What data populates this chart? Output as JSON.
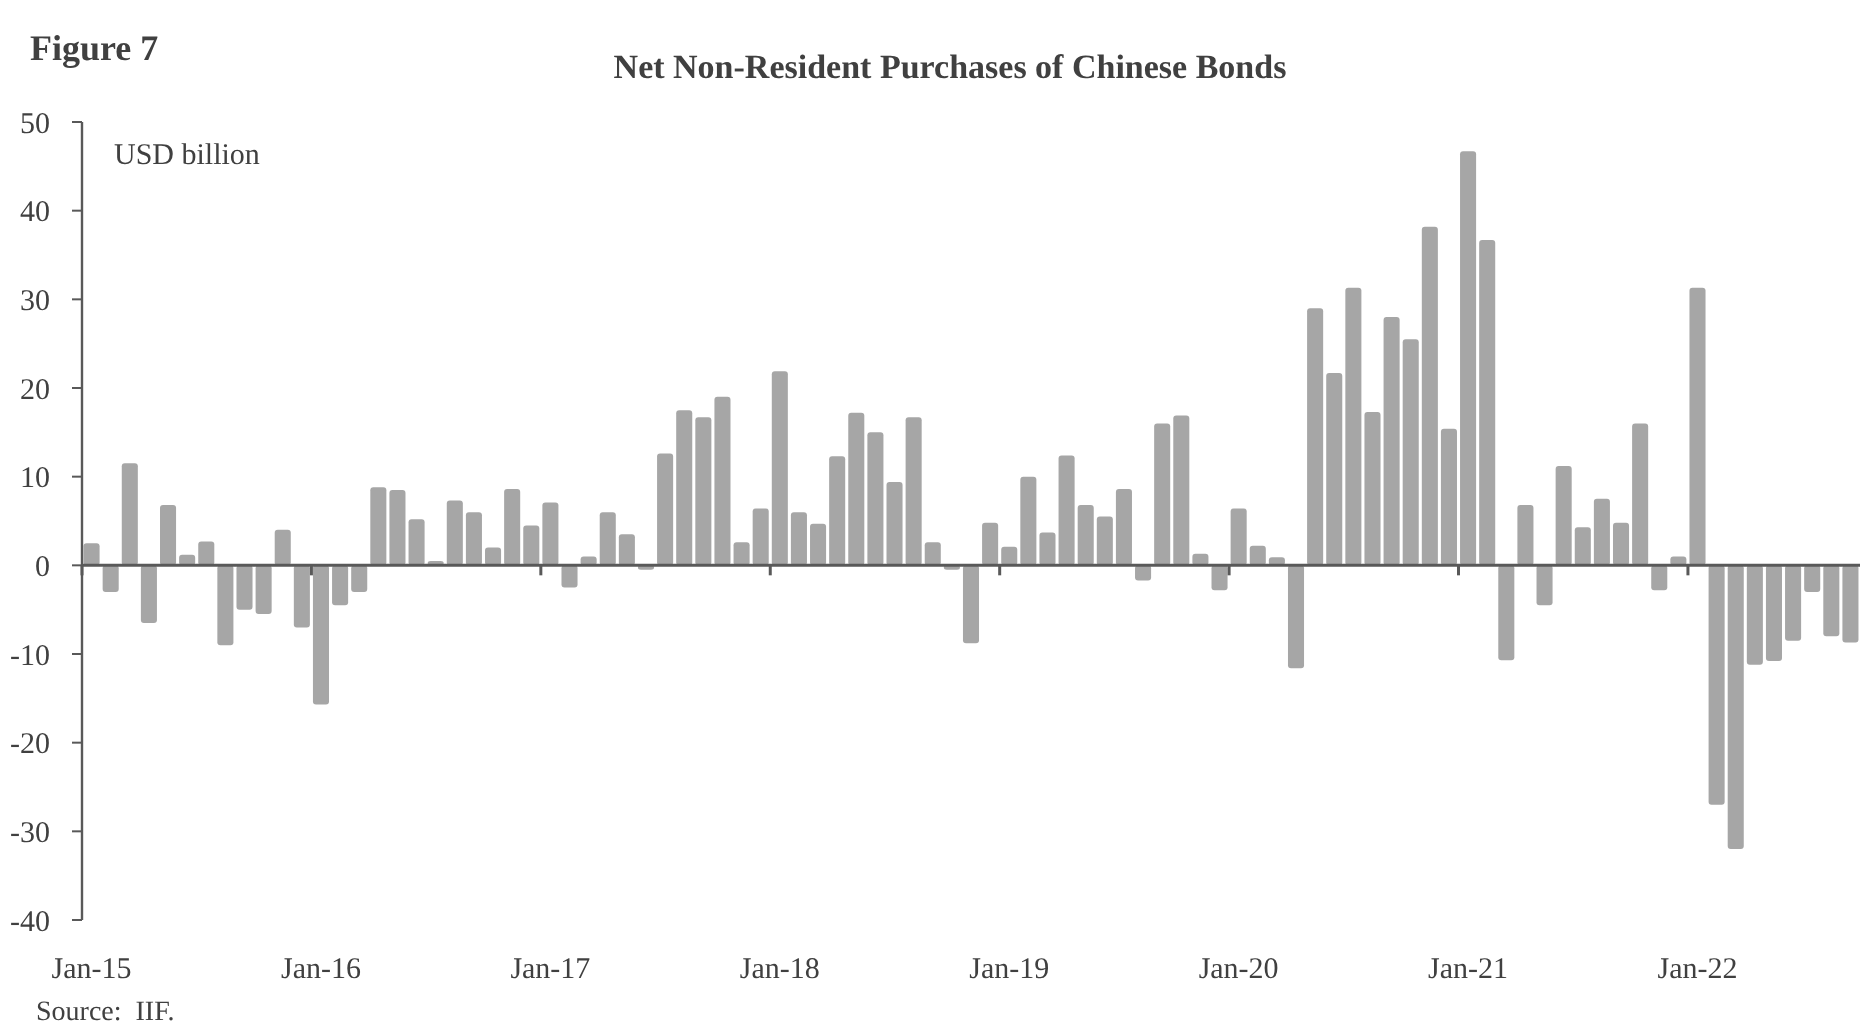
{
  "chart_data": {
    "type": "bar",
    "title": "Net Non-Resident Purchases of Chinese Bonds",
    "ylabel": "USD billion",
    "annotations": [
      "Figure 7",
      "Source:  IIF."
    ],
    "categories": [
      "Jan-15",
      null,
      null,
      null,
      null,
      null,
      null,
      null,
      null,
      null,
      null,
      null,
      "Jan-16",
      null,
      null,
      null,
      null,
      null,
      null,
      null,
      null,
      null,
      null,
      null,
      "Jan-17",
      null,
      null,
      null,
      null,
      null,
      null,
      null,
      null,
      null,
      null,
      null,
      "Jan-18",
      null,
      null,
      null,
      null,
      null,
      null,
      null,
      null,
      null,
      null,
      null,
      "Jan-19",
      null,
      null,
      null,
      null,
      null,
      null,
      null,
      null,
      null,
      null,
      null,
      "Jan-20",
      null,
      null,
      null,
      null,
      null,
      null,
      null,
      null,
      null,
      null,
      null,
      "Jan-21",
      null,
      null,
      null,
      null,
      null,
      null,
      null,
      null,
      null,
      null,
      null,
      "Jan-22",
      null,
      null,
      null,
      null,
      null,
      null,
      null,
      null
    ],
    "values": [
      2.5,
      -3,
      11.5,
      -6.5,
      6.8,
      1.2,
      2.7,
      -9,
      -5,
      -5.5,
      4,
      -7,
      -15.7,
      -4.5,
      -3,
      8.8,
      8.5,
      5.2,
      0.5,
      7.3,
      6,
      2,
      8.6,
      4.5,
      7.1,
      -2.5,
      1,
      6,
      3.5,
      -0.5,
      12.6,
      17.5,
      16.7,
      19,
      2.6,
      6.4,
      21.9,
      6,
      4.7,
      12.3,
      17.2,
      15,
      9.4,
      16.7,
      2.6,
      -0.5,
      -8.8,
      4.8,
      2.1,
      10,
      3.7,
      12.4,
      6.8,
      5.5,
      8.6,
      -1.7,
      16,
      16.9,
      1.3,
      -2.8,
      6.4,
      2.2,
      0.9,
      -11.6,
      29,
      21.7,
      31.3,
      17.3,
      28,
      25.5,
      38.2,
      15.4,
      46.7,
      36.7,
      -10.7,
      6.8,
      -4.5,
      11.2,
      4.3,
      7.5,
      4.8,
      16,
      -2.8,
      1,
      31.3,
      -27,
      -32,
      -11.2,
      -10.8,
      -8.5,
      -3,
      -8,
      -8.7
    ],
    "color": "#a6a6a6",
    "ylim": [
      -40,
      50
    ],
    "yticks": [
      -40,
      -30,
      -20,
      -10,
      0,
      10,
      20,
      30,
      40,
      50
    ]
  }
}
